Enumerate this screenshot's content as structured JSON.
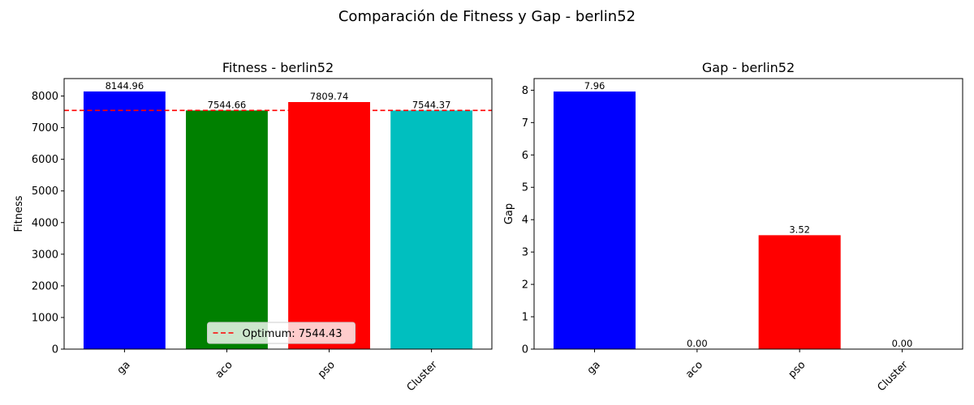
{
  "figure": {
    "title": "Comparación de Fitness y Gap - berlin52"
  },
  "chart_data": [
    {
      "type": "bar",
      "title": "Fitness - berlin52",
      "xlabel": "",
      "ylabel": "Fitness",
      "categories": [
        "ga",
        "aco",
        "pso",
        "Cluster"
      ],
      "values": [
        8144.96,
        7544.66,
        7809.74,
        7544.37
      ],
      "value_labels": [
        "8144.96",
        "7544.66",
        "7809.74",
        "7544.37"
      ],
      "colors": [
        "#0000ff",
        "#008000",
        "#ff0000",
        "#00bfbf"
      ],
      "ylim": [
        0,
        8552.2
      ],
      "yticks": [
        0,
        1000,
        2000,
        3000,
        4000,
        5000,
        6000,
        7000,
        8000
      ],
      "reference_line": {
        "value": 7544.43,
        "label": "Optimum: 7544.43",
        "color": "#ff0000",
        "style": "dashed"
      },
      "legend": {
        "position": "lower center",
        "entries": [
          "Optimum: 7544.43"
        ]
      },
      "grid": false
    },
    {
      "type": "bar",
      "title": "Gap - berlin52",
      "xlabel": "",
      "ylabel": "Gap",
      "categories": [
        "ga",
        "aco",
        "pso",
        "Cluster"
      ],
      "values": [
        7.96,
        0.0,
        3.52,
        0.0
      ],
      "value_labels": [
        "7.96",
        "0.00",
        "3.52",
        "0.00"
      ],
      "colors": [
        "#0000ff",
        "#008000",
        "#ff0000",
        "#00bfbf"
      ],
      "ylim": [
        0,
        8.36
      ],
      "yticks": [
        0,
        1,
        2,
        3,
        4,
        5,
        6,
        7,
        8
      ],
      "grid": false
    }
  ]
}
